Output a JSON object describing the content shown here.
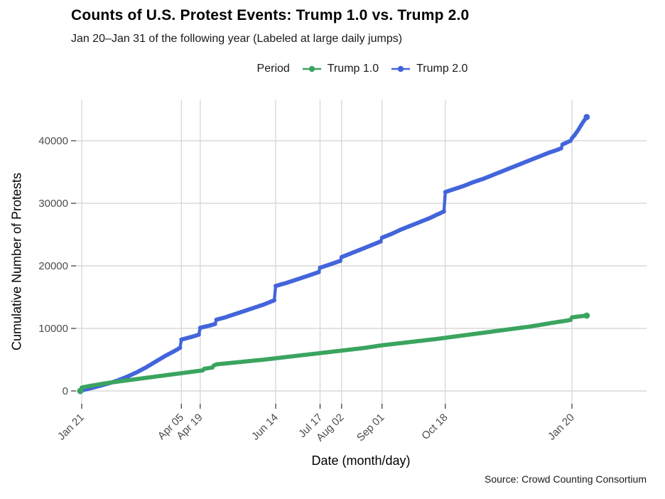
{
  "header": {
    "title": "Counts of U.S. Protest Events: Trump 1.0 vs. Trump 2.0",
    "subtitle": "Jan 20–Jan 31 of the following year (Labeled at large daily jumps)"
  },
  "legend": {
    "title": "Period",
    "items": [
      {
        "label": "Trump 1.0",
        "color": "#3BA45F"
      },
      {
        "label": "Trump 2.0",
        "color": "#4365DB"
      }
    ]
  },
  "caption": "Source: Crowd Counting Consortium",
  "chart_data": {
    "type": "line",
    "title": "Counts of U.S. Protest Events: Trump 1.0 vs. Trump 2.0",
    "subtitle": "Jan 20–Jan 31 of the following year (Labeled at large daily jumps)",
    "xlabel": "Date (month/day)",
    "ylabel": "Cumulative Number of Protests",
    "x_unit": "days since Jan 20",
    "xlim_days": [
      0,
      376
    ],
    "ylim": [
      0,
      46000
    ],
    "grid": true,
    "legend_position": "top",
    "colors": {
      "grid": "#D9D9D9",
      "tick": "#333333",
      "tick_label": "#4D4D4D"
    },
    "x_ticks": [
      {
        "day": 1,
        "label": "Jan 21"
      },
      {
        "day": 75,
        "label": "Apr 05"
      },
      {
        "day": 89,
        "label": "Apr 19"
      },
      {
        "day": 145,
        "label": "Jun 14"
      },
      {
        "day": 178,
        "label": "Jul 17"
      },
      {
        "day": 194,
        "label": "Aug 02"
      },
      {
        "day": 224,
        "label": "Sep 01"
      },
      {
        "day": 271,
        "label": "Oct 18"
      },
      {
        "day": 365,
        "label": "Jan 20"
      }
    ],
    "y_ticks": [
      0,
      10000,
      20000,
      30000,
      40000
    ],
    "series": [
      {
        "name": "Trump 2.0",
        "color": "#4365DB",
        "points": [
          [
            0,
            0
          ],
          [
            1,
            100
          ],
          [
            7,
            400
          ],
          [
            14,
            800
          ],
          [
            21,
            1200
          ],
          [
            28,
            1700
          ],
          [
            35,
            2300
          ],
          [
            42,
            3000
          ],
          [
            49,
            3800
          ],
          [
            56,
            4700
          ],
          [
            63,
            5600
          ],
          [
            70,
            6400
          ],
          [
            74,
            6900
          ],
          [
            75,
            8200
          ],
          [
            82,
            8600
          ],
          [
            88,
            9000
          ],
          [
            89,
            10100
          ],
          [
            95,
            10400
          ],
          [
            100,
            10700
          ],
          [
            101,
            11400
          ],
          [
            108,
            11800
          ],
          [
            115,
            12300
          ],
          [
            122,
            12800
          ],
          [
            129,
            13300
          ],
          [
            136,
            13800
          ],
          [
            144,
            14500
          ],
          [
            145,
            16800
          ],
          [
            152,
            17200
          ],
          [
            159,
            17700
          ],
          [
            166,
            18200
          ],
          [
            173,
            18700
          ],
          [
            177,
            19000
          ],
          [
            178,
            19700
          ],
          [
            185,
            20200
          ],
          [
            193,
            20800
          ],
          [
            194,
            21400
          ],
          [
            201,
            22000
          ],
          [
            208,
            22600
          ],
          [
            215,
            23200
          ],
          [
            223,
            23900
          ],
          [
            224,
            24500
          ],
          [
            231,
            25100
          ],
          [
            238,
            25800
          ],
          [
            245,
            26400
          ],
          [
            252,
            27000
          ],
          [
            259,
            27600
          ],
          [
            266,
            28300
          ],
          [
            270,
            28700
          ],
          [
            271,
            31800
          ],
          [
            278,
            32300
          ],
          [
            285,
            32800
          ],
          [
            292,
            33400
          ],
          [
            299,
            33900
          ],
          [
            306,
            34500
          ],
          [
            313,
            35100
          ],
          [
            320,
            35700
          ],
          [
            327,
            36300
          ],
          [
            334,
            36900
          ],
          [
            341,
            37500
          ],
          [
            348,
            38100
          ],
          [
            355,
            38600
          ],
          [
            357,
            38800
          ],
          [
            358,
            39400
          ],
          [
            361,
            39700
          ],
          [
            364,
            40000
          ],
          [
            365,
            40400
          ],
          [
            367,
            40900
          ],
          [
            369,
            41500
          ],
          [
            371,
            42200
          ],
          [
            373,
            42900
          ],
          [
            375,
            43500
          ],
          [
            376,
            43800
          ]
        ]
      },
      {
        "name": "Trump 1.0",
        "color": "#3BA45F",
        "points": [
          [
            0,
            0
          ],
          [
            1,
            550
          ],
          [
            7,
            800
          ],
          [
            14,
            1050
          ],
          [
            21,
            1300
          ],
          [
            28,
            1500
          ],
          [
            35,
            1700
          ],
          [
            42,
            1900
          ],
          [
            49,
            2100
          ],
          [
            56,
            2300
          ],
          [
            63,
            2500
          ],
          [
            70,
            2700
          ],
          [
            77,
            2900
          ],
          [
            84,
            3100
          ],
          [
            91,
            3300
          ],
          [
            92,
            3550
          ],
          [
            98,
            3750
          ],
          [
            99,
            4050
          ],
          [
            101,
            4250
          ],
          [
            108,
            4400
          ],
          [
            115,
            4550
          ],
          [
            122,
            4700
          ],
          [
            129,
            4850
          ],
          [
            136,
            5000
          ],
          [
            144,
            5200
          ],
          [
            152,
            5400
          ],
          [
            160,
            5600
          ],
          [
            168,
            5800
          ],
          [
            178,
            6050
          ],
          [
            186,
            6250
          ],
          [
            194,
            6450
          ],
          [
            202,
            6650
          ],
          [
            210,
            6850
          ],
          [
            218,
            7100
          ],
          [
            224,
            7300
          ],
          [
            232,
            7500
          ],
          [
            240,
            7700
          ],
          [
            248,
            7900
          ],
          [
            256,
            8100
          ],
          [
            264,
            8300
          ],
          [
            271,
            8500
          ],
          [
            278,
            8700
          ],
          [
            285,
            8900
          ],
          [
            292,
            9100
          ],
          [
            299,
            9300
          ],
          [
            306,
            9500
          ],
          [
            313,
            9700
          ],
          [
            320,
            9900
          ],
          [
            327,
            10100
          ],
          [
            334,
            10300
          ],
          [
            341,
            10550
          ],
          [
            348,
            10800
          ],
          [
            355,
            11050
          ],
          [
            360,
            11200
          ],
          [
            364,
            11350
          ],
          [
            365,
            11750
          ],
          [
            368,
            11850
          ],
          [
            372,
            11950
          ],
          [
            376,
            12050
          ]
        ]
      }
    ],
    "caption": "Source: Crowd Counting Consortium"
  },
  "axes": {
    "x_title": "Date (month/day)",
    "y_title": "Cumulative Number of Protests"
  }
}
